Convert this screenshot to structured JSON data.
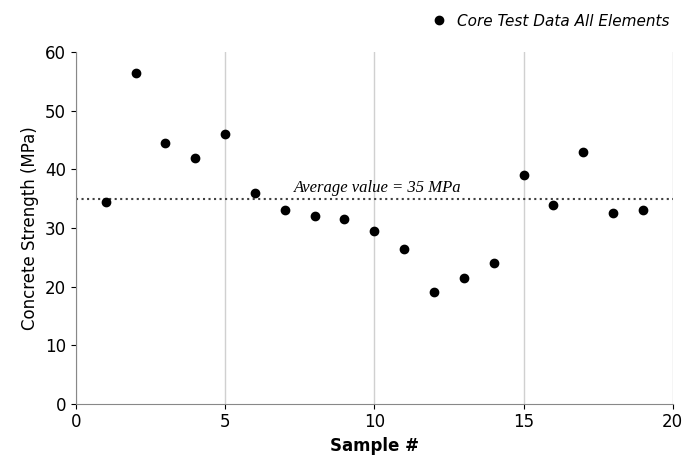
{
  "chart_data": {
    "type": "scatter",
    "x": [
      1,
      2,
      3,
      4,
      5,
      6,
      7,
      8,
      9,
      10,
      11,
      12,
      13,
      14,
      15,
      16,
      17,
      18,
      19
    ],
    "series": [
      {
        "name": "Core Test Data All Elements",
        "color": "#000000",
        "marker": "circle",
        "values": [
          34.5,
          56.5,
          44.5,
          42,
          46,
          36,
          33,
          32,
          31.5,
          29.5,
          26.5,
          19,
          21.5,
          24,
          39,
          34,
          43,
          32.5,
          33
        ]
      }
    ],
    "xlabel": "Sample #",
    "ylabel": "Concrete Strength (MPa)",
    "average_line": {
      "value": 35,
      "label": "Average value = 35 MPa",
      "color": "#404040",
      "line_style": "dotted"
    },
    "xlim": [
      0,
      20
    ],
    "xticks": [
      0,
      5,
      10,
      15,
      20
    ],
    "ylim": [
      0,
      60
    ],
    "yticks": [
      0,
      10,
      20,
      30,
      40,
      50,
      60
    ],
    "grid": "x",
    "legend": "upper right"
  }
}
